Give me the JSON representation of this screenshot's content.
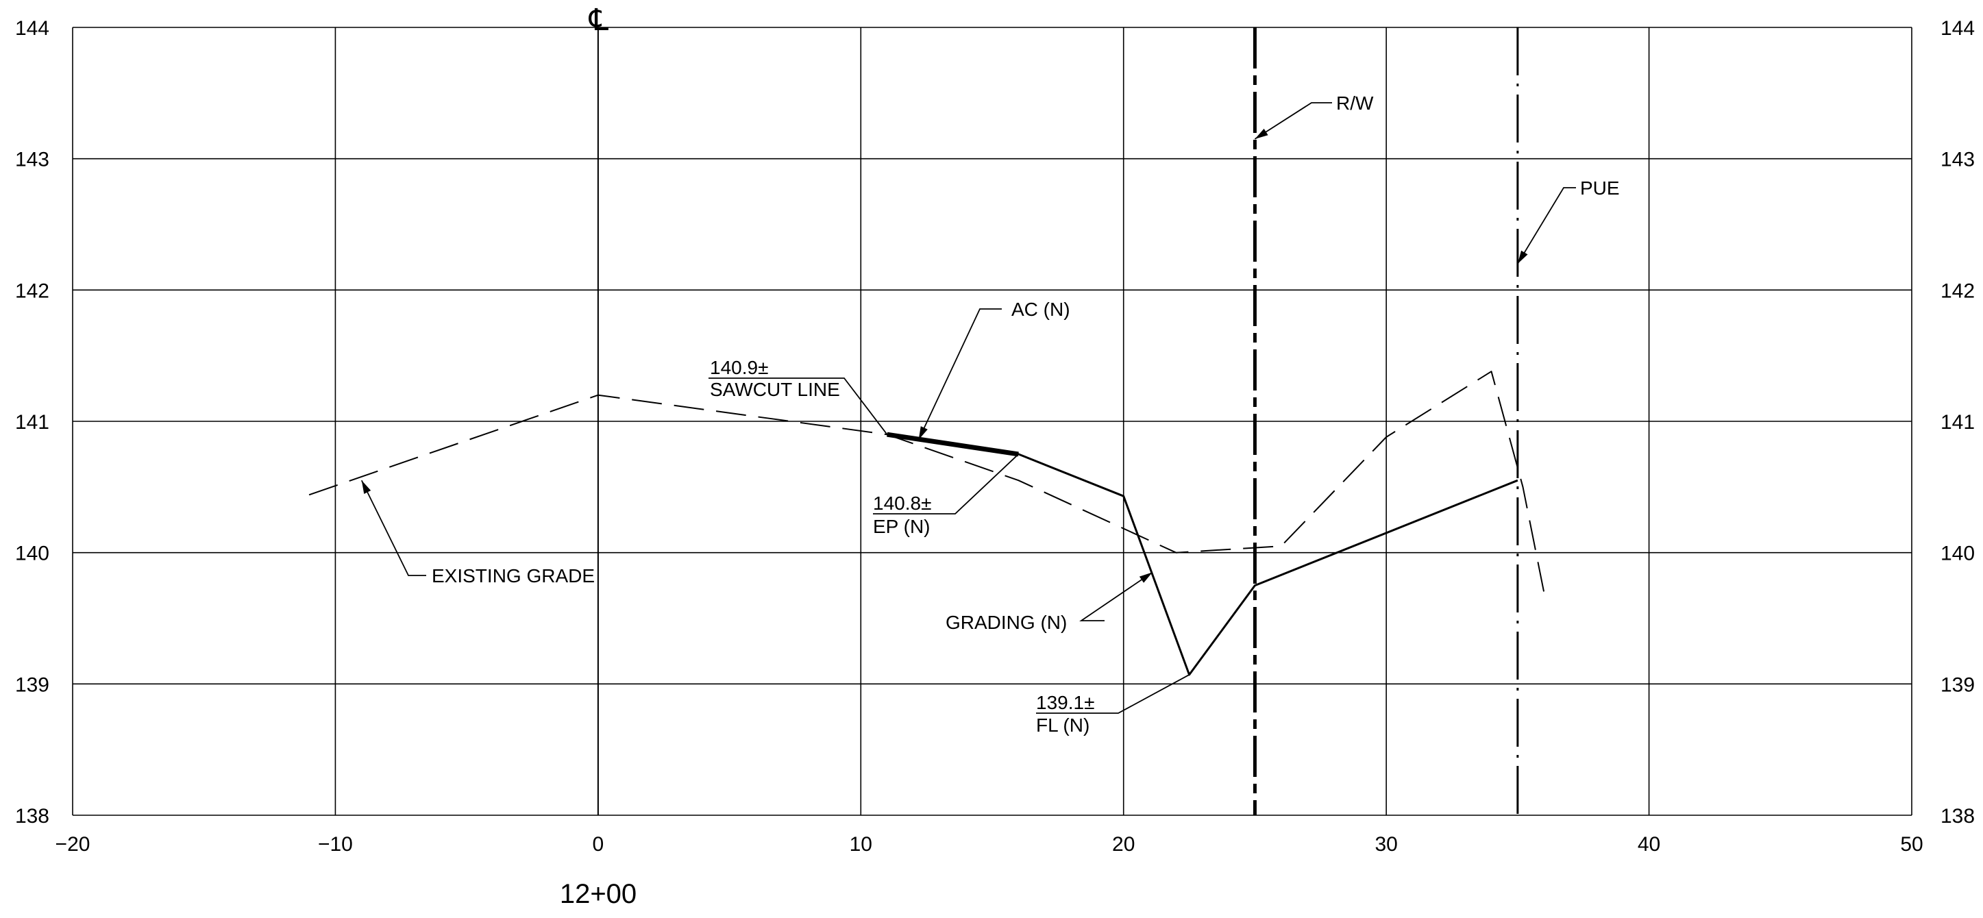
{
  "chart_data": {
    "type": "line",
    "title": "",
    "xlabel": "",
    "ylabel": "",
    "xlim": [
      -20,
      50
    ],
    "ylim": [
      138,
      144
    ],
    "grid": true,
    "x_ticks": [
      -20,
      -10,
      0,
      10,
      20,
      30,
      40,
      50
    ],
    "x_tick_labels": [
      "−20",
      "−10",
      "0",
      "10",
      "20",
      "30",
      "40",
      "50"
    ],
    "y_ticks": [
      138,
      139,
      140,
      141,
      142,
      143,
      144
    ],
    "y_tick_labels": [
      "138",
      "139",
      "140",
      "141",
      "142",
      "143",
      "144"
    ],
    "station_label": "12+00",
    "centerline_symbol": "℄",
    "series": [
      {
        "style": "dashed",
        "x": [
          -11,
          0,
          11,
          16,
          22,
          26,
          30,
          34,
          35.2,
          36
        ],
        "y": [
          140.44,
          141.2,
          140.9,
          140.55,
          140.0,
          140.05,
          140.88,
          141.38,
          140.5,
          139.7
        ]
      },
      {
        "style": "solid",
        "x": [
          11,
          16,
          20,
          22.5,
          25,
          35
        ],
        "y": [
          140.9,
          140.75,
          140.43,
          139.07,
          139.75,
          140.55
        ]
      },
      {
        "style": "heavy",
        "x": [
          11,
          16
        ],
        "y": [
          140.9,
          140.75
        ]
      }
    ],
    "vertical_lines": [
      {
        "name": "centerline",
        "x": 0,
        "style": "solid"
      },
      {
        "name": "R/W",
        "x": 25,
        "style": "heavy-dashed"
      },
      {
        "name": "PUE",
        "x": 35,
        "style": "dash-dot"
      }
    ],
    "annotations": [
      {
        "line1": "140.9±",
        "line2": "SAWCUT LINE",
        "point": [
          11,
          140.9
        ]
      },
      {
        "line1": "AC (N)",
        "line2": "",
        "point": [
          12.2,
          140.86
        ]
      },
      {
        "line1": "140.8±",
        "line2": "EP (N)",
        "point": [
          16,
          140.75
        ]
      },
      {
        "line1": "EXISTING GRADE",
        "line2": "",
        "point": [
          -9,
          140.55
        ]
      },
      {
        "line1": "GRADING (N)",
        "line2": "",
        "point": [
          21.1,
          139.85
        ]
      },
      {
        "line1": "139.1±",
        "line2": "FL (N)",
        "point": [
          22.5,
          139.07
        ]
      },
      {
        "line1": "R/W",
        "line2": "",
        "point": [
          25,
          143.15
        ]
      },
      {
        "line1": "PUE",
        "line2": "",
        "point": [
          35,
          142.2
        ]
      }
    ]
  }
}
